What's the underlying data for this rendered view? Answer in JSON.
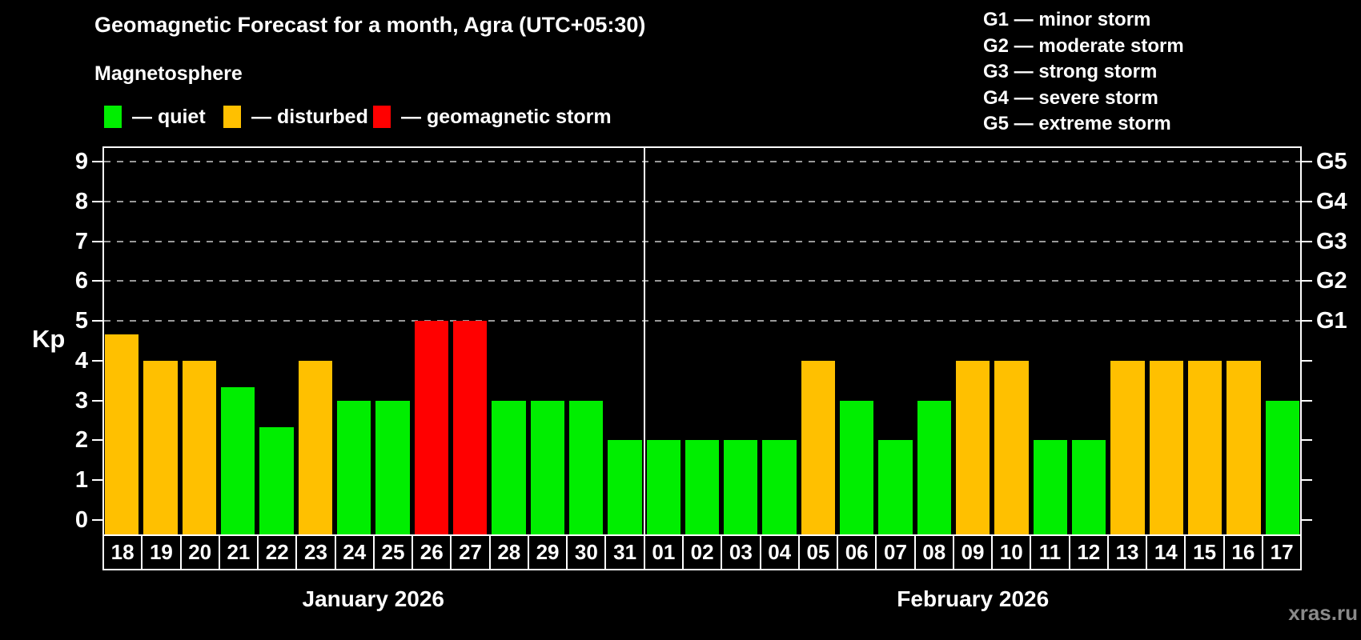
{
  "title": "Geomagnetic Forecast for a month, Agra (UTC+05:30)",
  "subtitle": "Magnetosphere",
  "legend": {
    "items": [
      {
        "id": "quiet",
        "label": "— quiet",
        "color": "#00ee00"
      },
      {
        "id": "disturbed",
        "label": "— disturbed",
        "color": "#ffc000"
      },
      {
        "id": "storm",
        "label": "— geomagnetic storm",
        "color": "#ff0000"
      }
    ]
  },
  "g_legend": {
    "lines": [
      "G1 — minor storm",
      "G2 — moderate storm",
      "G3 — strong storm",
      "G4 — severe storm",
      "G5 — extreme storm"
    ]
  },
  "axis": {
    "kp_label": "Kp",
    "left_tick_labels": [
      "0",
      "1",
      "2",
      "3",
      "4",
      "5",
      "6",
      "7",
      "8",
      "9"
    ],
    "right_storm_levels": [
      {
        "kp": 5,
        "label": "G1"
      },
      {
        "kp": 6,
        "label": "G2"
      },
      {
        "kp": 7,
        "label": "G3"
      },
      {
        "kp": 8,
        "label": "G4"
      },
      {
        "kp": 9,
        "label": "G5"
      }
    ]
  },
  "watermark": "xras.ru",
  "chart_data": {
    "type": "bar",
    "title": "Geomagnetic Forecast for a month, Agra (UTC+05:30)",
    "xlabel": "",
    "ylabel": "Kp",
    "ylim": [
      0,
      9.4
    ],
    "y_ticks": [
      0,
      1,
      2,
      3,
      4,
      5,
      6,
      7,
      8,
      9
    ],
    "gridlines_at": [
      5,
      6,
      7,
      8,
      9
    ],
    "grid": "dashed horizontal lines at storm levels G1–G5 (Kp 5–9)",
    "legend_position": "top",
    "month_groups": [
      {
        "label": "January 2026",
        "count": 14
      },
      {
        "label": "February 2026",
        "count": 17
      }
    ],
    "categories": [
      "18",
      "19",
      "20",
      "21",
      "22",
      "23",
      "24",
      "25",
      "26",
      "27",
      "28",
      "29",
      "30",
      "31",
      "01",
      "02",
      "03",
      "04",
      "05",
      "06",
      "07",
      "08",
      "09",
      "10",
      "11",
      "12",
      "13",
      "14",
      "15",
      "16",
      "17"
    ],
    "values": [
      4.67,
      4,
      4,
      3.33,
      2.33,
      4,
      3,
      3,
      5,
      5,
      3,
      3,
      3,
      2,
      2,
      2,
      2,
      2,
      4,
      3,
      2,
      3,
      4,
      4,
      2,
      2,
      4,
      4,
      4,
      4,
      3
    ],
    "statuses": [
      "disturbed",
      "disturbed",
      "disturbed",
      "quiet",
      "quiet",
      "disturbed",
      "quiet",
      "quiet",
      "storm",
      "storm",
      "quiet",
      "quiet",
      "quiet",
      "quiet",
      "quiet",
      "quiet",
      "quiet",
      "quiet",
      "disturbed",
      "quiet",
      "quiet",
      "quiet",
      "disturbed",
      "disturbed",
      "quiet",
      "quiet",
      "disturbed",
      "disturbed",
      "disturbed",
      "disturbed",
      "quiet"
    ],
    "status_colors": {
      "quiet": "#00ee00",
      "disturbed": "#ffc000",
      "storm": "#ff0000"
    }
  }
}
